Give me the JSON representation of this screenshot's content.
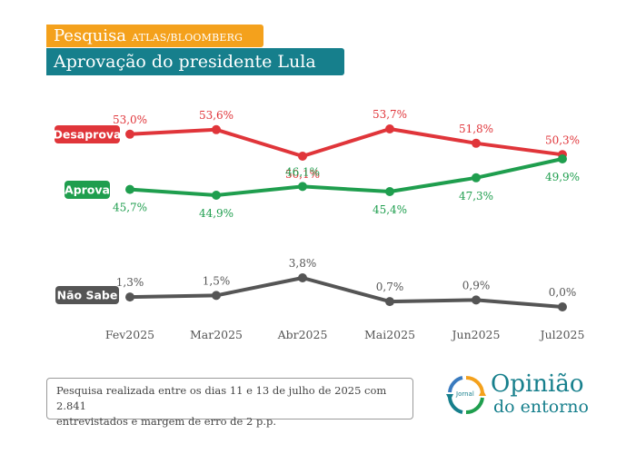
{
  "header": {
    "title": "Pesquisa",
    "source": "ATLAS/BLOOMBERG",
    "subtitle": "Aprovação do presidente Lula"
  },
  "footnote": {
    "line1": "Pesquisa realizada entre os dias 11 e 13 de julho de 2025 com 2.841",
    "line2": "entrevistados e margem de erro de 2 p.p."
  },
  "logo": {
    "word1": "Opinião",
    "word2": "do entorno",
    "small": "Jornal",
    "icon": "circular-arrows-logo-icon"
  },
  "colors": {
    "desaprova": "#e0353a",
    "aprova": "#1f9e4e",
    "naosabe": "#555555",
    "orange": "#f4a11c",
    "teal": "#167f8c"
  },
  "chart_data": {
    "type": "line",
    "categories": [
      "Fev2025",
      "Mar2025",
      "Abr2025",
      "Mai2025",
      "Jun2025",
      "Jul2025"
    ],
    "series": [
      {
        "name": "Desaprova",
        "values": [
          53.0,
          53.6,
          50.1,
          53.7,
          51.8,
          50.3
        ],
        "labels": [
          "53,0%",
          "53,6%",
          "50,1%",
          "53,7%",
          "51,8%",
          "50,3%"
        ]
      },
      {
        "name": "Aprova",
        "values": [
          45.7,
          44.9,
          46.1,
          45.4,
          47.3,
          49.9
        ],
        "labels": [
          "45,7%",
          "44,9%",
          "46,1%",
          "45,4%",
          "47,3%",
          "49,9%"
        ]
      },
      {
        "name": "Não Sabe",
        "values": [
          1.3,
          1.5,
          3.8,
          0.7,
          0.9,
          0.0
        ],
        "labels": [
          "1,3%",
          "1,5%",
          "3,8%",
          "0,7%",
          "0,9%",
          "0,0%"
        ]
      }
    ]
  }
}
